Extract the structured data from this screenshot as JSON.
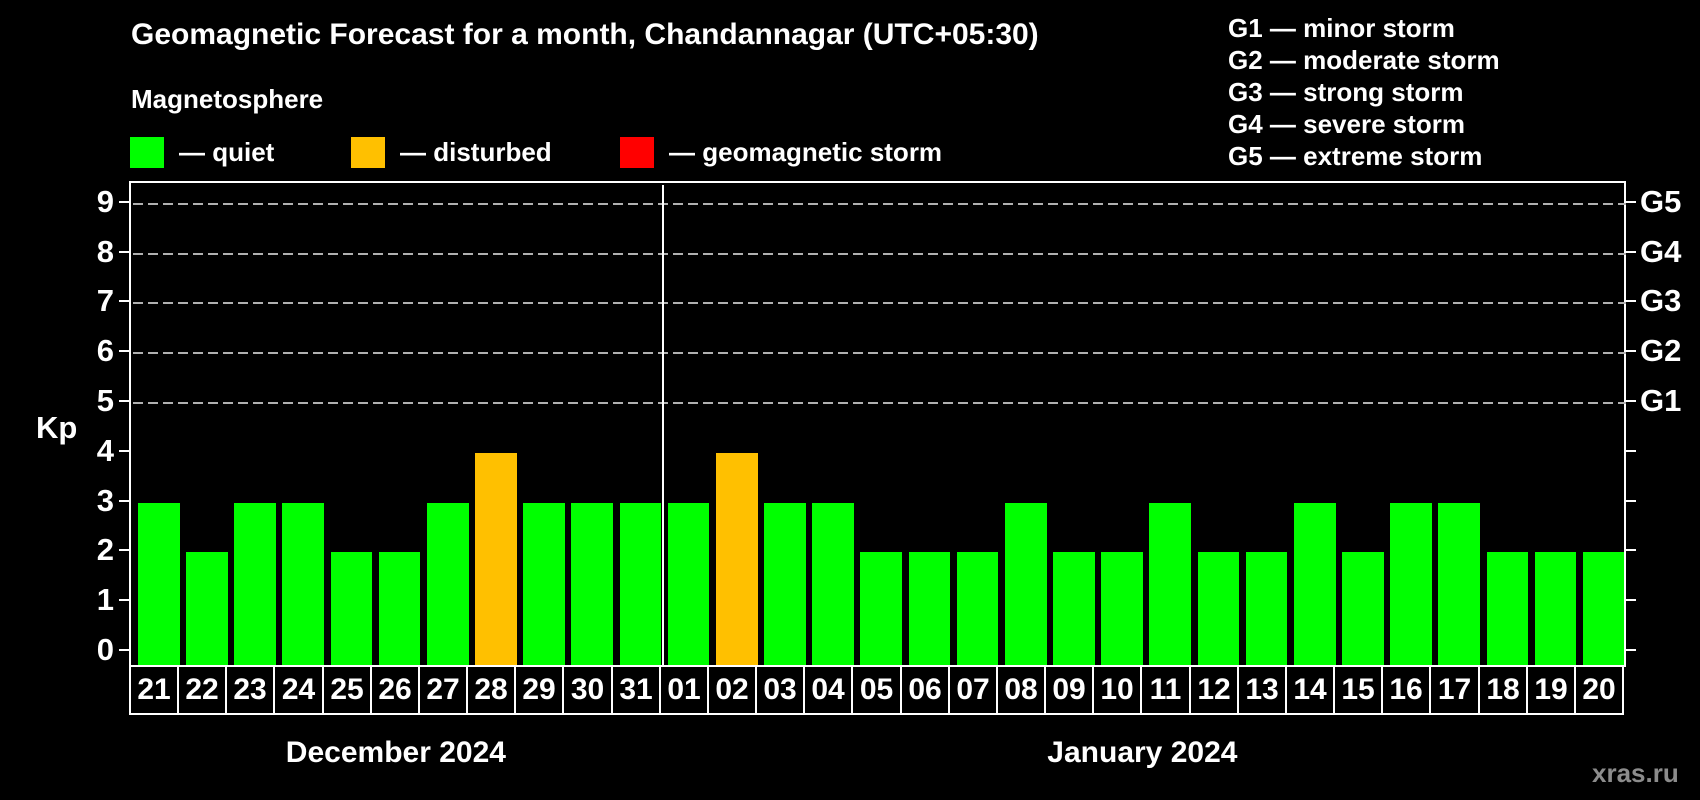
{
  "header": {
    "title": "Geomagnetic Forecast for a month, Chandannagar (UTC+05:30)",
    "subtitle": "Magnetosphere"
  },
  "kp_legend": [
    {
      "label": "— quiet",
      "color": "#00ff00"
    },
    {
      "label": "— disturbed",
      "color": "#ffc000"
    },
    {
      "label": "— geomagnetic storm",
      "color": "#ff0000"
    }
  ],
  "storm_scale_legend": [
    "G1 — minor storm",
    "G2 — moderate storm",
    "G3 — strong storm",
    "G4 — severe storm",
    "G5 — extreme storm"
  ],
  "watermark": "xras.ru",
  "chart_data": {
    "type": "bar",
    "ylabel": "Kp",
    "ylim": [
      -0.35,
      9.4
    ],
    "yticks": [
      0,
      1,
      2,
      3,
      4,
      5,
      6,
      7,
      8,
      9
    ],
    "gridlines": [
      5,
      6,
      7,
      8,
      9
    ],
    "right_axis_labels": [
      {
        "value": 9,
        "label": "G5"
      },
      {
        "value": 8,
        "label": "G4"
      },
      {
        "value": 7,
        "label": "G3"
      },
      {
        "value": 6,
        "label": "G2"
      },
      {
        "value": 5,
        "label": "G1"
      }
    ],
    "status_colors": {
      "quiet": "#00ff00",
      "disturbed": "#ffc000",
      "storm": "#ff0000"
    },
    "groups": [
      {
        "label": "December 2024",
        "categories": [
          "21",
          "22",
          "23",
          "24",
          "25",
          "26",
          "27",
          "28",
          "29",
          "30",
          "31"
        ],
        "values": [
          3,
          2,
          3,
          3,
          2,
          2,
          3,
          4,
          3,
          3,
          3
        ],
        "statuses": [
          "quiet",
          "quiet",
          "quiet",
          "quiet",
          "quiet",
          "quiet",
          "quiet",
          "disturbed",
          "quiet",
          "quiet",
          "quiet"
        ]
      },
      {
        "label": "January 2024",
        "categories": [
          "01",
          "02",
          "03",
          "04",
          "05",
          "06",
          "07",
          "08",
          "09",
          "10",
          "11",
          "12",
          "13",
          "14",
          "15",
          "16",
          "17",
          "18",
          "19",
          "20"
        ],
        "values": [
          3,
          4,
          3,
          3,
          2,
          2,
          2,
          3,
          2,
          2,
          3,
          2,
          2,
          3,
          2,
          3,
          3,
          2,
          2,
          2
        ],
        "statuses": [
          "quiet",
          "disturbed",
          "quiet",
          "quiet",
          "quiet",
          "quiet",
          "quiet",
          "quiet",
          "quiet",
          "quiet",
          "quiet",
          "quiet",
          "quiet",
          "quiet",
          "quiet",
          "quiet",
          "quiet",
          "quiet",
          "quiet",
          "quiet"
        ]
      }
    ]
  }
}
